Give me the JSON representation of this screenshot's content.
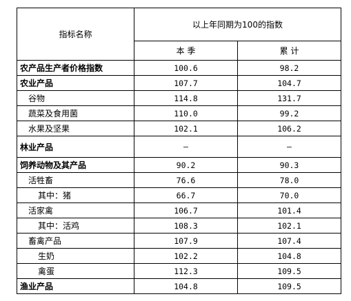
{
  "header": {
    "indicator": "指标名称",
    "index_title": "以上年同期为100的指数",
    "col_quarter": "本 季",
    "col_cumulative": "累 计"
  },
  "rows": [
    {
      "label": "农产品生产者价格指数",
      "quarter": "100.6",
      "cumulative": "98.2"
    },
    {
      "label": "农业产品",
      "quarter": "107.7",
      "cumulative": "104.7"
    },
    {
      "label": "谷物",
      "quarter": "114.8",
      "cumulative": "131.7"
    },
    {
      "label": "蔬菜及食用菌",
      "quarter": "110.0",
      "cumulative": "99.2"
    },
    {
      "label": "水果及坚果",
      "quarter": "102.1",
      "cumulative": "106.2"
    },
    {
      "label": "林业产品",
      "quarter": "—",
      "cumulative": "—"
    },
    {
      "label": "饲养动物及其产品",
      "quarter": "90.2",
      "cumulative": "90.3"
    },
    {
      "label": "活牲畜",
      "quarter": "76.6",
      "cumulative": "78.0"
    },
    {
      "label": "其中：猪",
      "quarter": "66.7",
      "cumulative": "70.0"
    },
    {
      "label": "活家禽",
      "quarter": "106.7",
      "cumulative": "101.4"
    },
    {
      "label": "其中：活鸡",
      "quarter": "108.3",
      "cumulative": "102.1"
    },
    {
      "label": "畜禽产品",
      "quarter": "107.9",
      "cumulative": "107.4"
    },
    {
      "label": "生奶",
      "quarter": "102.2",
      "cumulative": "104.8"
    },
    {
      "label": "禽蛋",
      "quarter": "112.3",
      "cumulative": "109.5"
    },
    {
      "label": "渔业产品",
      "quarter": "104.8",
      "cumulative": "109.5"
    }
  ]
}
